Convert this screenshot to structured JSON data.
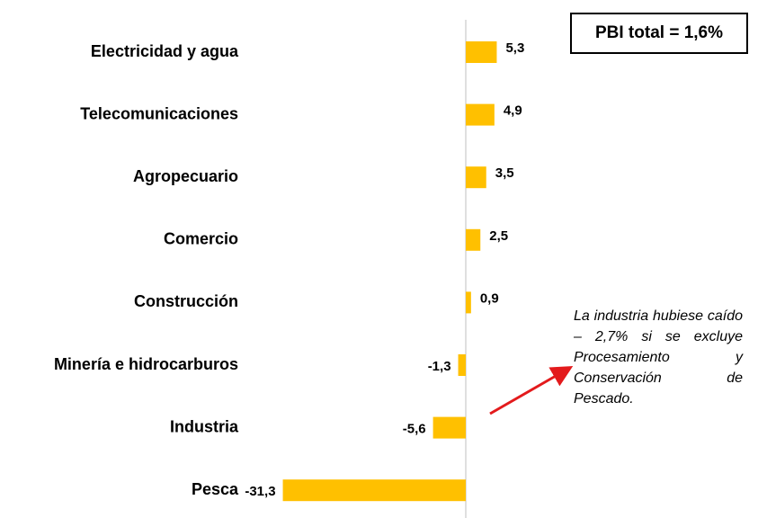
{
  "chart_data": {
    "type": "bar",
    "orientation": "horizontal",
    "categories": [
      "Electricidad y agua",
      "Telecomunicaciones",
      "Agropecuario",
      "Comercio",
      "Construcción",
      "Minería e hidrocarburos",
      "Industria",
      "Pesca"
    ],
    "values": [
      5.3,
      4.9,
      3.5,
      2.5,
      0.9,
      -1.3,
      -5.6,
      -31.3
    ],
    "value_labels": [
      "5,3",
      "4,9",
      "3,5",
      "2,5",
      "0,9",
      "-1,3",
      "-5,6",
      "-31,3"
    ],
    "color": "#ffc000",
    "xlim": [
      -32,
      48
    ],
    "annotations": [
      "PBI total = 1,6%",
      "La industria hubiese caído – 2,7% si se excluye Procesamiento y Conservación de Pescado."
    ]
  }
}
